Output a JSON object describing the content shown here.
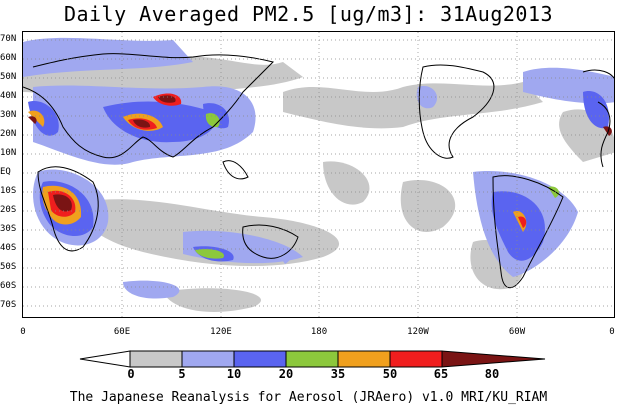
{
  "title": "Daily Averaged PM2.5 [ug/m3]: 31Aug2013",
  "credit": "The Japanese Reanalysis for Aerosol (JRAero) v1.0 MRI/KU_RIAM",
  "lat_labels": [
    "70N",
    "60N",
    "50N",
    "40N",
    "30N",
    "20N",
    "10N",
    "EQ",
    "10S",
    "20S",
    "30S",
    "40S",
    "50S",
    "60S",
    "70S"
  ],
  "lon_labels": [
    "0",
    "60E",
    "120E",
    "180",
    "120W",
    "60W",
    "0"
  ],
  "colorbar": {
    "levels": [
      "0",
      "5",
      "10",
      "20",
      "35",
      "50",
      "65",
      "80"
    ],
    "colors": [
      "#ffffff",
      "#c8c8c8",
      "#a0a8f0",
      "#5a64f0",
      "#8cc83c",
      "#f0a01e",
      "#f01e1e",
      "#7a1414"
    ]
  },
  "legend_colors": {
    "5_10": "#c8c8c8",
    "10_20": "#a0a8f0",
    "20_35": "#5a64f0",
    "35_50": "#8cc83c",
    "50_65": "#f0a01e",
    "65_80": "#f01e1e",
    "80_plus": "#7a1414"
  }
}
